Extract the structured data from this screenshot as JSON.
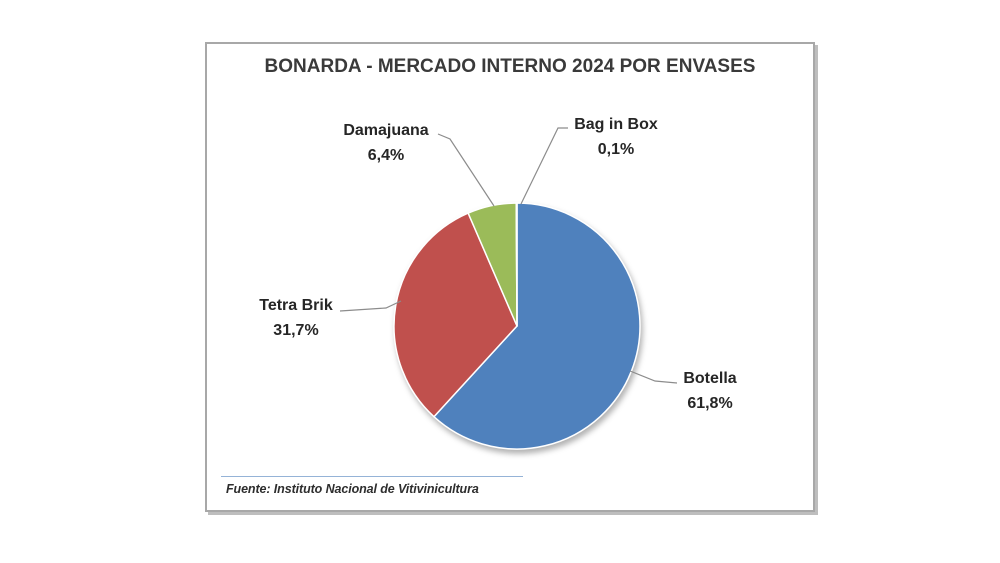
{
  "chart_data": {
    "type": "pie",
    "title": "BONARDA - MERCADO INTERNO 2024 POR ENVASES",
    "direction": "clockwise",
    "start_angle_deg": 0,
    "legend_position": "none",
    "label_style": "outside callouts with leader lines",
    "decimal_separator": ",",
    "slices": [
      {
        "label": "Botella",
        "value_pct": 61.8,
        "pct_display": "61,8%",
        "color": "#4F81BD"
      },
      {
        "label": "Tetra Brik",
        "value_pct": 31.7,
        "pct_display": "31,7%",
        "color": "#C0504D"
      },
      {
        "label": "Damajuana",
        "value_pct": 6.4,
        "pct_display": "6,4%",
        "color": "#9BBB59"
      },
      {
        "label": "Bag in Box",
        "value_pct": 0.1,
        "pct_display": "0,1%",
        "color": "#8064A2"
      }
    ],
    "source_note": "Fuente: Instituto Nacional de Vitivinicultura"
  },
  "colors": {
    "slice_border": "#ffffff",
    "leader_line": "#8c8c8c",
    "frame_border": "#a8a8a8",
    "source_rule": "#95b3d7",
    "title_text": "#3a3a3a",
    "label_text": "#262626"
  }
}
